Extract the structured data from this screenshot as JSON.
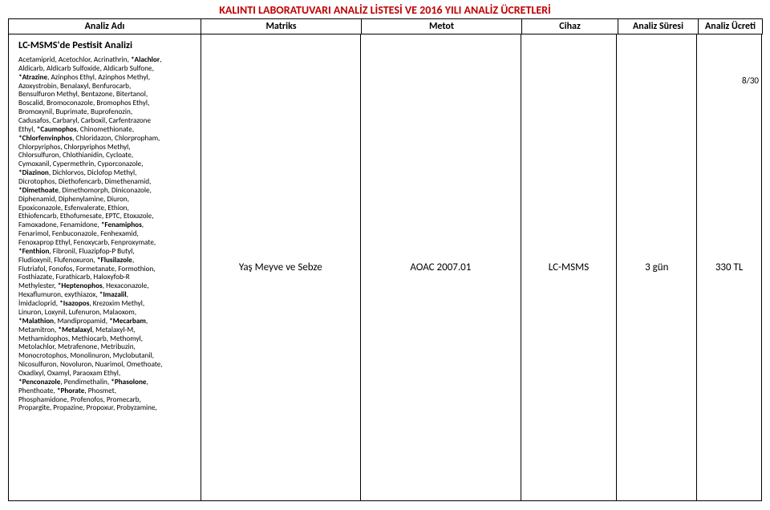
{
  "doc_title": "KALINTI LABORATUVARI ANALİZ LİSTESİ VE 2016 YILI ANALİZ ÜCRETLERİ",
  "page_number": "8/30",
  "headers": {
    "c1": "Analiz Adı",
    "c2": "Matriks",
    "c3": "Metot",
    "c4": "Cihaz",
    "c5": "Analiz Süresi",
    "c6": "Analiz Ücreti"
  },
  "row": {
    "section_title": "LC-MSMS'de Pestisit Analizi",
    "matriks": "Yaş Meyve ve Sebze",
    "metot": "AOAC 2007.01",
    "cihaz": "LC-MSMS",
    "sure": "3 gün",
    "ucret": "330 TL"
  },
  "compounds": [
    [
      "Acetamiprid, Acetochlor, Acrinathrin, ",
      "*Alachlor",
      ","
    ],
    [
      "Aldicarb, Aldicarb Sulfoxide, Aldicarb Sulfone,"
    ],
    [
      "*Atrazine",
      ", Azinphos Ethyl, Azinphos Methyl,"
    ],
    [
      "Azoxystrobin, Benalaxyl, Benfurocarb,"
    ],
    [
      "Bensulfuron Methyl, Bentazone, Bitertanol,"
    ],
    [
      "Boscalid, Bromoconazole, Bromophos Ethyl,"
    ],
    [
      "Bromoxynil, Buprimate, Buprofenozin,"
    ],
    [
      "Cadusafos, Carbaryl, Carboxil, Carfentrazone"
    ],
    [
      "Ethyl, ",
      "*Caumophos",
      ", Chinomethionate,"
    ],
    [
      "*Chlorfenvinphos",
      ", Chloridazon, Chlorpropham,"
    ],
    [
      "Chlorpyriphos, Chlorpyriphos Methyl,"
    ],
    [
      "Chlorsulfuron, Chlothianidin, Cycloate,"
    ],
    [
      "Cymoxanil, Cypermethrin, Cyporconazole,"
    ],
    [
      "*Diazinon",
      ", Dichlorvos, Diclofop Methyl,"
    ],
    [
      "Dicrotophos, Diethofencarb, Dimethenamid,"
    ],
    [
      "*Dimethoate",
      ", Dimethomorph, Diniconazole,"
    ],
    [
      "Diphenamid, Diphenylamine, Diuron,"
    ],
    [
      "Epoxiconazole, Esfenvalerate, Ethion,"
    ],
    [
      "Ethiofencarb, Ethofumesate, EPTC, Etoxazole,"
    ],
    [
      "Famoxadone, Fenamidone, ",
      "*Fenamiphos",
      ","
    ],
    [
      "Fenarimol, Fenbuconazole, Fenhexamid,"
    ],
    [
      "Fenoxaprop Ethyl, Fenoxycarb, Fenproxymate,"
    ],
    [
      "*Fenthion",
      ", Fibronil, Fluazipfop-P Butyl,"
    ],
    [
      "Fludioxynil, Flufenoxuron, ",
      "*Flusilazole",
      ","
    ],
    [
      "Flutriafol, Fonofos, Formetanate, Formothion,"
    ],
    [
      "Fosthiazate, Furathicarb,  Haloxyfob-R"
    ],
    [
      "Methylester, ",
      "*Heptenophos",
      ", Hexaconazole,"
    ],
    [
      "Hexaflumuron, exythiazox, ",
      "*Imazalil",
      ","
    ],
    [
      "İmidacloprid, ",
      "*Isazopos",
      ", Krezoxim Methyl,"
    ],
    [
      "Linuron, Loxynil, Lufenuron, Malaoxom,"
    ],
    [
      "*Malathion",
      ", Mandipropamid, ",
      "*Mecarbam",
      ","
    ],
    [
      "Metamitron, ",
      "*Metalaxyl",
      ", Metalaxyl-M,"
    ],
    [
      "Methamidophos, Methiocarb, Methomyl,"
    ],
    [
      "Metolachlor, Metrafenone, Metribuzin,"
    ],
    [
      "Monocrotophos, Monolinuron, Myclobutanil,"
    ],
    [
      "Nicosulfuron, Novoluron, Nuarimol, Omethoate,"
    ],
    [
      "Oxadixyl, Oxamyl, Paraoxam Ethyl,"
    ],
    [
      "*Penconazole",
      ", Pendimethalin, ",
      "*Phasolone",
      ","
    ],
    [
      "Phenthoate, ",
      "*Phorate",
      ", Phosmet,"
    ],
    [
      "Phosphamidone, Profenofos, Promecarb,"
    ],
    [
      "Propargite, Propazine, Propoxur, Probyzamine,"
    ]
  ],
  "colors": {
    "title": "#c00000",
    "border": "#000000",
    "text": "#000000",
    "background": "#ffffff"
  },
  "fonts": {
    "doc_title_size": 14,
    "header_size": 12,
    "cell_size": 13,
    "section_title_size": 12.5,
    "compounds_size": 9.2
  }
}
